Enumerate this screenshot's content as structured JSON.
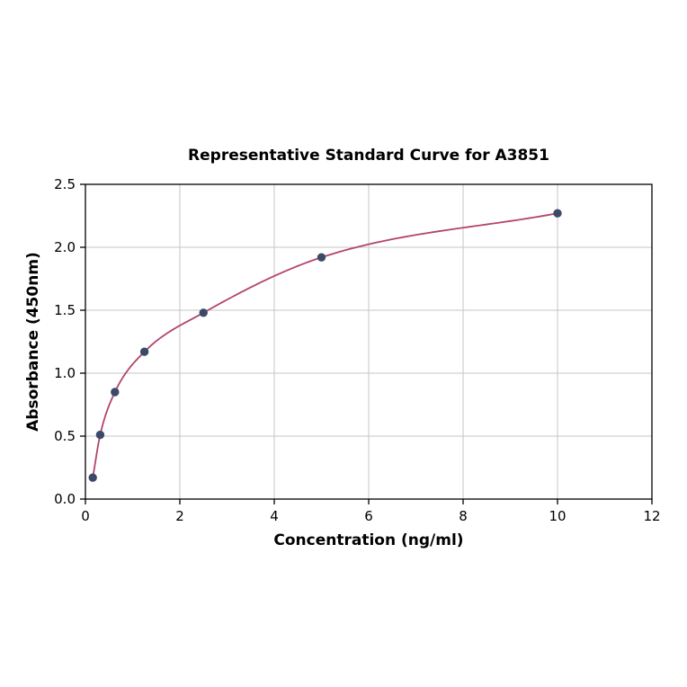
{
  "page": {
    "background": "#ffffff"
  },
  "chart_data": {
    "type": "scatter",
    "title": "Representative Standard Curve for A3851",
    "xlabel": "Concentration (ng/ml)",
    "ylabel": "Absorbance (450nm)",
    "xlim": [
      0,
      12
    ],
    "ylim": [
      0,
      2.5
    ],
    "x_ticks": [
      0,
      2,
      4,
      6,
      8,
      10,
      12
    ],
    "x_tick_labels": [
      "0",
      "2",
      "4",
      "6",
      "8",
      "10",
      "12"
    ],
    "y_ticks": [
      0,
      0.5,
      1,
      1.5,
      2,
      2.5
    ],
    "y_tick_labels": [
      "0.0",
      "0.5",
      "1.0",
      "1.5",
      "2.0",
      "2.5"
    ],
    "grid": true,
    "legend": "none",
    "series": [
      {
        "name": "standards",
        "marker": "circle",
        "fit": "smooth-curve-through-points",
        "x": [
          0.156,
          0.3125,
          0.625,
          1.25,
          2.5,
          5,
          10
        ],
        "y": [
          0.17,
          0.51,
          0.85,
          1.17,
          1.48,
          1.92,
          2.27
        ]
      }
    ],
    "colors": {
      "curve": "#b3446c",
      "points": "#3b4a68",
      "grid": "#c6c6c6",
      "axis": "#000000",
      "plot_background": "#ffffff"
    }
  }
}
